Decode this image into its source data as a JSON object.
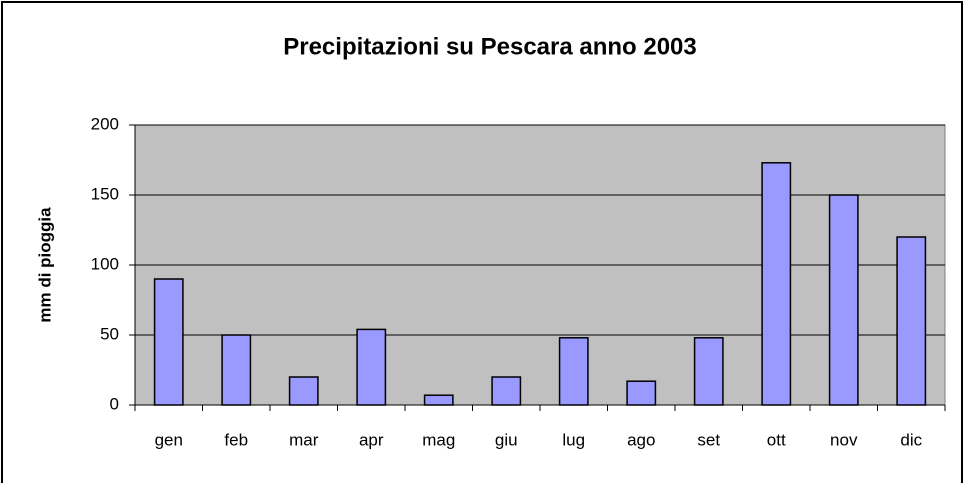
{
  "chart_data": {
    "type": "bar",
    "title": "Precipitazioni su Pescara anno 2003",
    "ylabel": "mm di pioggia",
    "categories": [
      "gen",
      "feb",
      "mar",
      "apr",
      "mag",
      "giu",
      "lug",
      "ago",
      "set",
      "ott",
      "nov",
      "dic"
    ],
    "values": [
      90,
      50,
      20,
      54,
      7,
      20,
      48,
      17,
      48,
      173,
      150,
      120
    ],
    "color": "#9999ff",
    "ylim": [
      0,
      200
    ],
    "yticks": [
      0,
      50,
      100,
      150,
      200
    ],
    "grid": true
  }
}
